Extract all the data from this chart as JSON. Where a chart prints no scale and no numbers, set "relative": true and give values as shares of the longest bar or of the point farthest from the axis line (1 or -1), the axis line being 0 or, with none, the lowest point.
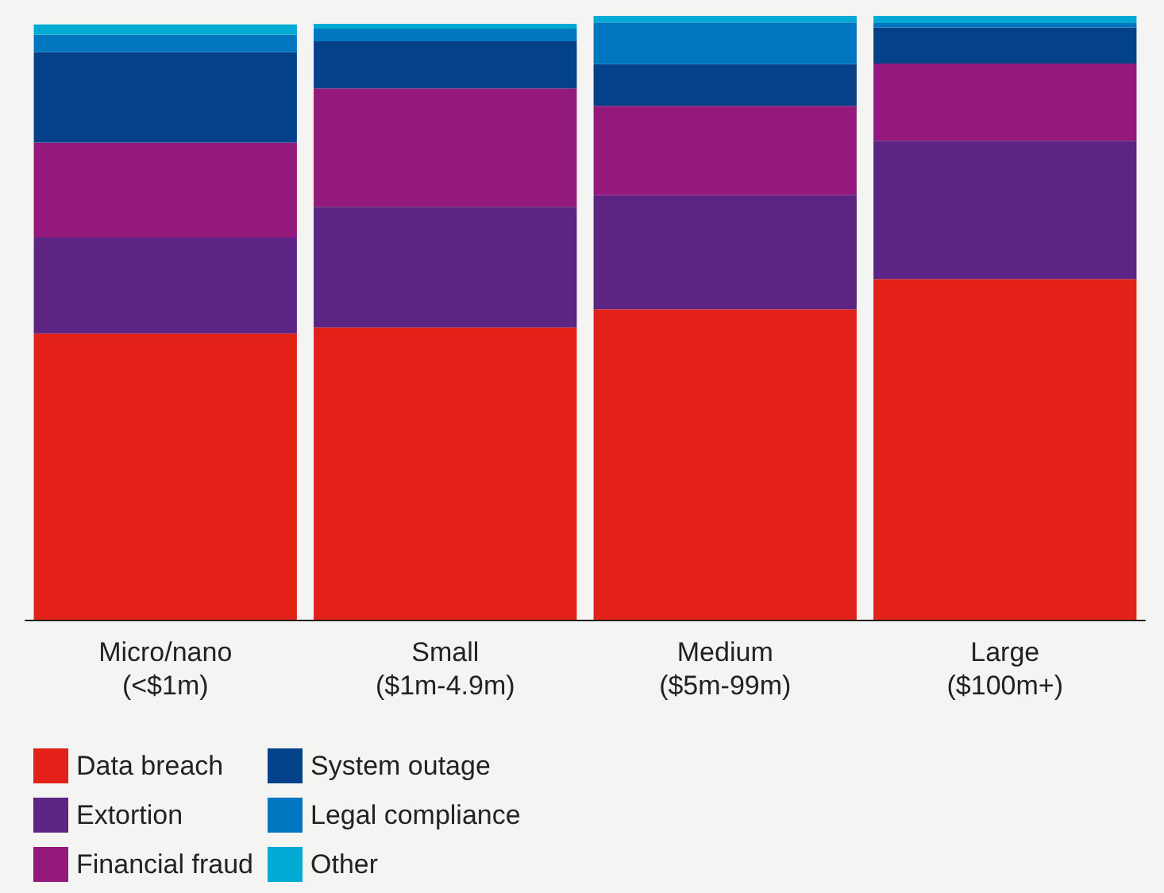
{
  "chart_data": {
    "type": "bar",
    "stacked": true,
    "relative": true,
    "categories": [
      "Micro/nano\n(<$1m)",
      "Small\n($1m-4.9m)",
      "Medium\n($5m-99m)",
      "Large\n($100m+)"
    ],
    "series": [
      {
        "name": "Data breach",
        "color": "#e32119",
        "values": [
          0.474,
          0.484,
          0.514,
          0.564
        ]
      },
      {
        "name": "Extortion",
        "color": "#5c2483",
        "values": [
          0.159,
          0.2,
          0.189,
          0.229
        ]
      },
      {
        "name": "Financial fraud",
        "color": "#93197d",
        "values": [
          0.157,
          0.196,
          0.148,
          0.128
        ]
      },
      {
        "name": "System outage",
        "color": "#03418a",
        "values": [
          0.15,
          0.078,
          0.069,
          0.06
        ]
      },
      {
        "name": "Legal compliance",
        "color": "#0076c1",
        "values": [
          0.029,
          0.021,
          0.069,
          0.007
        ]
      },
      {
        "name": "Other",
        "color": "#00aad2",
        "values": [
          0.017,
          0.008,
          0.011,
          0.012
        ]
      }
    ],
    "legend": "bottom left"
  }
}
